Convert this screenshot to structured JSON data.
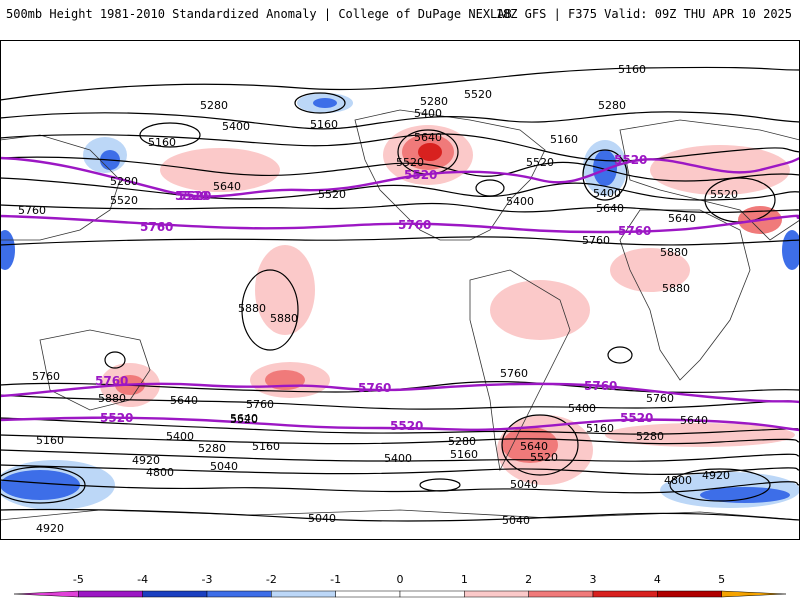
{
  "header": {
    "title": "500mb Height 1981-2010 Standardized Anomaly | College of DuPage NEXLAB",
    "run_info": "18Z GFS | F375 Valid: 09Z THU APR 10 2025"
  },
  "contour_labels": {
    "c1": "5160",
    "c2": "5280",
    "c3": "5400",
    "c4": "5160",
    "c5": "5160",
    "c6": "5280",
    "c7": "5520",
    "c8": "5520",
    "c9": "5640",
    "c10": "5760",
    "c11": "5280",
    "c12": "5400",
    "c13": "5640",
    "c14": "5520",
    "c15": "5280",
    "c16": "5160",
    "c17": "5520",
    "c18": "5400",
    "c19": "5640",
    "c20": "5520",
    "c21": "5640",
    "c22": "5760",
    "c23": "5880",
    "c24": "5880",
    "c25": "5880",
    "c26": "5880",
    "c27": "5880",
    "c28": "5760",
    "c29": "5640",
    "c30": "5760",
    "c31": "5640",
    "c32": "5520",
    "c33": "5160",
    "c34": "5400",
    "c35": "5280",
    "c36": "5160",
    "c37": "5040",
    "c38": "4920",
    "c39": "4800",
    "c40": "4920",
    "c41": "5040",
    "c42": "5280",
    "c43": "5160",
    "c44": "5400",
    "c45": "5040",
    "c46": "5040",
    "c47": "5760",
    "c48": "5400",
    "c49": "5160",
    "c50": "5640",
    "c51": "5520",
    "c52": "5280",
    "c53": "5760",
    "c54": "5640",
    "c55": "4920",
    "c56": "4800",
    "c57": "5400",
    "c58": "5520"
  },
  "highlight_labels": {
    "p1": "5520",
    "p2": "5760",
    "p3": "5520",
    "p4": "5760",
    "p5": "5520",
    "p6": "5760",
    "p7": "5760",
    "p8": "5520",
    "p9": "5760",
    "p10": "5520",
    "p11": "5520",
    "p12": "5760",
    "p13": "5520"
  },
  "colorbar": {
    "ticks": [
      "-5",
      "-4",
      "-3",
      "-2",
      "-1",
      "0",
      "1",
      "2",
      "3",
      "4",
      "5"
    ],
    "colors": [
      "#e040d8",
      "#9c17c4",
      "#1a3fc0",
      "#3d6ee8",
      "#bcd7f7",
      "#ffffff",
      "#ffffff",
      "#fbc9c9",
      "#f07a7a",
      "#d8211f",
      "#b00000",
      "#f5a300"
    ]
  },
  "colors": {
    "contour": "#000000",
    "highlight_contour": "#9c17c4",
    "coastline": "#333333"
  }
}
